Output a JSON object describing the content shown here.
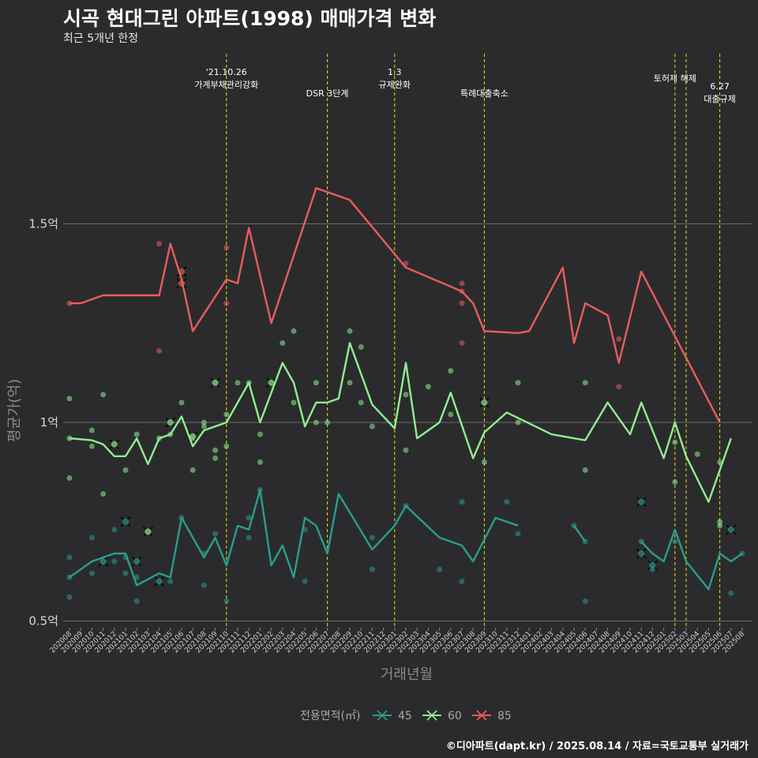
{
  "title": "시곡 현대그린 아파트(1998) 매매가격 변화",
  "subtitle": "최근 5개년 한정",
  "caption": "©디아파트(dapt.kr) / 2025.08.14 / 자료=국토교통부 실거래가",
  "colors": {
    "background": "#2b2b2d",
    "grid": "#6b6b6b",
    "event_line": "#e5e500",
    "s45": "#2a9d8f",
    "s60": "#90ee90",
    "s85": "#e85d5d"
  },
  "chart_data": {
    "type": "line",
    "xlabel": "거래년월",
    "ylabel": "평균가(억)",
    "ylim": [
      0.5,
      1.5
    ],
    "yticks": [
      0.5,
      1.0,
      1.5
    ],
    "ytick_labels": [
      "0.5억",
      "1억",
      "1.5억"
    ],
    "grid": true,
    "legend_title": "전용면적(㎡)",
    "legend_position": "bottom",
    "x": [
      "202008",
      "202009",
      "202010",
      "202011",
      "202012",
      "202101",
      "202102",
      "202103",
      "202104",
      "202105",
      "202106",
      "202107",
      "202108",
      "202109",
      "202110",
      "202111",
      "202112",
      "202201",
      "202202",
      "202203",
      "202204",
      "202205",
      "202206",
      "202207",
      "202208",
      "202209",
      "202210",
      "202211",
      "202212",
      "202301",
      "202302",
      "202303",
      "202304",
      "202305",
      "202306",
      "202307",
      "202308",
      "202309",
      "202310",
      "202311",
      "202312",
      "202401",
      "202402",
      "202403",
      "202404",
      "202405",
      "202406",
      "202407",
      "202408",
      "202409",
      "202410",
      "202411",
      "202412",
      "202501",
      "202502",
      "202503",
      "202504",
      "202505",
      "202506",
      "202507",
      "202508"
    ],
    "events": [
      {
        "x": "202110",
        "label": "'21.10.26\n가계부채관리강화"
      },
      {
        "x": "202207",
        "label": "DSR 3단계"
      },
      {
        "x": "202301",
        "label": "1.3\n규제완화"
      },
      {
        "x": "202309",
        "label": "특례대출축소"
      },
      {
        "x": "202502",
        "label": "토허제 해제"
      },
      {
        "x": "202503",
        "label": ""
      },
      {
        "x": "202506",
        "label": "6.27\n대출규제"
      }
    ],
    "series": [
      {
        "name": "45",
        "line": [
          [
            "202008",
            0.61
          ],
          [
            "202010",
            0.65
          ],
          [
            "202011",
            0.66
          ],
          [
            "202012",
            0.67
          ],
          [
            "202101",
            0.67
          ],
          [
            "202102",
            0.59
          ],
          [
            "202104",
            0.62
          ],
          [
            "202105",
            0.61
          ],
          [
            "202106",
            0.76
          ],
          [
            "202107",
            0.71
          ],
          [
            "202108",
            0.66
          ],
          [
            "202109",
            0.71
          ],
          [
            "202110",
            0.64
          ],
          [
            "202111",
            0.74
          ],
          [
            "202112",
            0.73
          ],
          [
            "202201",
            0.83
          ],
          [
            "202202",
            0.64
          ],
          [
            "202203",
            0.69
          ],
          [
            "202204",
            0.61
          ],
          [
            "202205",
            0.76
          ],
          [
            "202206",
            0.74
          ],
          [
            "202207",
            0.67
          ],
          [
            "202208",
            0.82
          ],
          [
            "202211",
            0.68
          ],
          [
            "202301",
            0.74
          ],
          [
            "202302",
            0.79
          ],
          [
            "202305",
            0.71
          ],
          [
            "202307",
            0.69
          ],
          [
            "202308",
            0.65
          ],
          [
            "202310",
            0.76
          ],
          [
            "202311",
            0.75
          ],
          [
            "202312",
            0.74
          ],
          null,
          [
            "202405",
            0.74
          ],
          [
            "202406",
            0.7
          ],
          null,
          [
            "202411",
            0.7
          ],
          [
            "202412",
            0.67
          ],
          [
            "202501",
            0.65
          ],
          [
            "202502",
            0.73
          ],
          [
            "202503",
            0.65
          ],
          [
            "202505",
            0.58
          ],
          [
            "202506",
            0.67
          ],
          [
            "202507",
            0.65
          ],
          [
            "202508",
            0.67
          ]
        ],
        "points": [
          [
            "202008",
            0.56
          ],
          [
            "202008",
            0.66
          ],
          [
            "202010",
            0.62
          ],
          [
            "202010",
            0.71
          ],
          [
            "202011",
            0.65
          ],
          [
            "202012",
            0.65
          ],
          [
            "202012",
            0.73
          ],
          [
            "202101",
            0.62
          ],
          [
            "202101",
            0.66
          ],
          [
            "202102",
            0.61
          ],
          [
            "202102",
            0.55
          ],
          [
            "202105",
            0.6
          ],
          [
            "202106",
            0.76
          ],
          [
            "202108",
            0.59
          ],
          [
            "202108",
            0.67
          ],
          [
            "202109",
            0.72
          ],
          [
            "202110",
            0.55
          ],
          [
            "202112",
            0.76
          ],
          [
            "202112",
            0.71
          ],
          [
            "202201",
            0.83
          ],
          [
            "202205",
            0.6
          ],
          [
            "202205",
            0.73
          ],
          [
            "202211",
            0.63
          ],
          [
            "202211",
            0.71
          ],
          [
            "202302",
            0.79
          ],
          [
            "202305",
            0.63
          ],
          [
            "202307",
            0.6
          ],
          [
            "202307",
            0.8
          ],
          [
            "202311",
            0.8
          ],
          [
            "202312",
            0.72
          ],
          [
            "202406",
            0.55
          ],
          [
            "202406",
            0.7
          ],
          [
            "202412",
            0.63
          ],
          [
            "202502",
            0.7
          ],
          [
            "202507",
            0.57
          ],
          [
            "202508",
            0.67
          ]
        ],
        "cancelled": [
          [
            "202011",
            0.65
          ],
          [
            "202101",
            0.75
          ],
          [
            "202102",
            0.65
          ],
          [
            "202104",
            0.6
          ],
          [
            "202411",
            0.8
          ],
          [
            "202411",
            0.67
          ],
          [
            "202412",
            0.64
          ],
          [
            "202507",
            0.73
          ]
        ]
      },
      {
        "name": "60",
        "line": [
          [
            "202008",
            0.96
          ],
          [
            "202010",
            0.955
          ],
          [
            "202011",
            0.945
          ],
          [
            "202012",
            0.915
          ],
          [
            "202101",
            0.915
          ],
          [
            "202102",
            0.96
          ],
          [
            "202103",
            0.895
          ],
          [
            "202104",
            0.96
          ],
          [
            "202105",
            0.97
          ],
          [
            "202106",
            1.015
          ],
          [
            "202107",
            0.94
          ],
          [
            "202108",
            0.98
          ],
          [
            "202109",
            0.99
          ],
          [
            "202110",
            1.0
          ],
          [
            "202111",
            1.05
          ],
          [
            "202112",
            1.1
          ],
          [
            "202201",
            1.0
          ],
          [
            "202203",
            1.15
          ],
          [
            "202204",
            1.1
          ],
          [
            "202205",
            0.99
          ],
          [
            "202206",
            1.05
          ],
          [
            "202207",
            1.05
          ],
          [
            "202208",
            1.06
          ],
          [
            "202209",
            1.2
          ],
          [
            "202211",
            1.045
          ],
          [
            "202301",
            0.985
          ],
          [
            "202302",
            1.15
          ],
          [
            "202303",
            0.96
          ],
          [
            "202305",
            1.0
          ],
          [
            "202306",
            1.075
          ],
          [
            "202308",
            0.91
          ],
          [
            "202309",
            0.975
          ],
          [
            "202311",
            1.025
          ],
          [
            "202403",
            0.97
          ],
          [
            "202406",
            0.955
          ],
          [
            "202408",
            1.05
          ],
          [
            "202410",
            0.97
          ],
          [
            "202411",
            1.05
          ],
          [
            "202501",
            0.91
          ],
          [
            "202502",
            1.0
          ],
          [
            "202503",
            0.915
          ],
          [
            "202505",
            0.8
          ],
          [
            "202507",
            0.96
          ]
        ],
        "points": [
          [
            "202008",
            1.06
          ],
          [
            "202008",
            0.86
          ],
          [
            "202010",
            0.94
          ],
          [
            "202010",
            0.98
          ],
          [
            "202011",
            1.07
          ],
          [
            "202011",
            0.82
          ],
          [
            "202101",
            0.88
          ],
          [
            "202102",
            0.97
          ],
          [
            "202104",
            0.96
          ],
          [
            "202105",
            0.97
          ],
          [
            "202106",
            1.05
          ],
          [
            "202107",
            0.96
          ],
          [
            "202107",
            0.88
          ],
          [
            "202108",
            1.0
          ],
          [
            "202108",
            0.99
          ],
          [
            "202109",
            0.93
          ],
          [
            "202109",
            0.91
          ],
          [
            "202110",
            1.02
          ],
          [
            "202110",
            0.94
          ],
          [
            "202111",
            1.1
          ],
          [
            "202112",
            1.1
          ],
          [
            "202201",
            0.97
          ],
          [
            "202201",
            0.9
          ],
          [
            "202203",
            1.2
          ],
          [
            "202204",
            1.23
          ],
          [
            "202204",
            1.05
          ],
          [
            "202206",
            1.1
          ],
          [
            "202206",
            1.0
          ],
          [
            "202207",
            1.0
          ],
          [
            "202209",
            1.23
          ],
          [
            "202209",
            1.1
          ],
          [
            "202210",
            1.19
          ],
          [
            "202210",
            1.05
          ],
          [
            "202211",
            0.99
          ],
          [
            "202302",
            1.07
          ],
          [
            "202302",
            0.93
          ],
          [
            "202304",
            1.09
          ],
          [
            "202306",
            1.13
          ],
          [
            "202306",
            1.02
          ],
          [
            "202309",
            0.9
          ],
          [
            "202312",
            1.1
          ],
          [
            "202312",
            1.0
          ],
          [
            "202406",
            1.1
          ],
          [
            "202406",
            0.88
          ],
          [
            "202502",
            0.85
          ],
          [
            "202502",
            0.95
          ],
          [
            "202504",
            0.92
          ],
          [
            "202506",
            0.9
          ],
          [
            "202506",
            0.74
          ],
          [
            "202506",
            0.75
          ]
        ],
        "cancelled": [
          [
            "202012",
            0.945
          ],
          [
            "202103",
            0.725
          ],
          [
            "202105",
            1.0
          ],
          [
            "202107",
            0.965
          ],
          [
            "202109",
            1.1
          ],
          [
            "202202",
            1.1
          ],
          [
            "202309",
            1.05
          ]
        ]
      },
      {
        "name": "85",
        "line": [
          [
            "202008",
            1.3
          ],
          [
            "202009",
            1.3
          ],
          [
            "202011",
            1.32
          ],
          [
            "202104",
            1.32
          ],
          [
            "202105",
            1.45
          ],
          [
            "202106",
            1.36
          ],
          [
            "202107",
            1.23
          ],
          [
            "202110",
            1.36
          ],
          [
            "202111",
            1.35
          ],
          [
            "202112",
            1.49
          ],
          [
            "202202",
            1.25
          ],
          [
            "202206",
            1.59
          ],
          [
            "202209",
            1.56
          ],
          [
            "202302",
            1.39
          ],
          [
            "202307",
            1.33
          ],
          [
            "202308",
            1.3
          ],
          [
            "202309",
            1.23
          ],
          [
            "202312",
            1.225
          ],
          [
            "202401",
            1.23
          ],
          [
            "202404",
            1.39
          ],
          [
            "202405",
            1.2
          ],
          [
            "202406",
            1.3
          ],
          [
            "202408",
            1.27
          ],
          [
            "202409",
            1.15
          ],
          [
            "202411",
            1.38
          ],
          [
            "202506",
            1.0
          ]
        ],
        "points": [
          [
            "202104",
            1.45
          ],
          [
            "202104",
            1.18
          ],
          [
            "202110",
            1.44
          ],
          [
            "202110",
            1.3
          ],
          [
            "202302",
            1.4
          ],
          [
            "202307",
            1.35
          ],
          [
            "202307",
            1.33
          ],
          [
            "202307",
            1.3
          ],
          [
            "202307",
            1.2
          ],
          [
            "202409",
            1.21
          ],
          [
            "202409",
            1.09
          ]
        ],
        "cancelled": [
          [
            "202106",
            1.38
          ],
          [
            "202106",
            1.35
          ]
        ]
      }
    ]
  }
}
